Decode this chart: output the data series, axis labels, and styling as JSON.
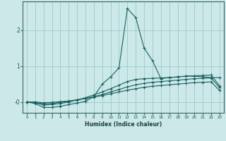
{
  "xlabel": "Humidex (Indice chaleur)",
  "background_color": "#cce8e8",
  "grid_color": "#99cccc",
  "line_color": "#1a6060",
  "x_values": [
    0,
    1,
    2,
    3,
    4,
    5,
    6,
    7,
    8,
    9,
    10,
    11,
    12,
    13,
    14,
    15,
    16,
    17,
    18,
    19,
    20,
    21,
    22,
    23
  ],
  "series": [
    [
      0.0,
      -0.04,
      -0.15,
      -0.15,
      -0.12,
      -0.07,
      -0.03,
      0.02,
      0.15,
      0.5,
      0.7,
      0.95,
      2.6,
      2.35,
      1.5,
      1.15,
      0.65,
      0.68,
      0.7,
      0.72,
      0.72,
      0.7,
      0.68,
      0.68
    ],
    [
      0.0,
      -0.02,
      -0.08,
      -0.07,
      -0.04,
      0.0,
      0.06,
      0.12,
      0.2,
      0.28,
      0.37,
      0.47,
      0.57,
      0.63,
      0.65,
      0.66,
      0.67,
      0.68,
      0.7,
      0.72,
      0.73,
      0.74,
      0.75,
      0.45
    ],
    [
      0.0,
      -0.01,
      -0.05,
      -0.04,
      -0.01,
      0.02,
      0.06,
      0.1,
      0.15,
      0.21,
      0.28,
      0.35,
      0.42,
      0.48,
      0.52,
      0.55,
      0.57,
      0.59,
      0.61,
      0.63,
      0.65,
      0.66,
      0.67,
      0.4
    ],
    [
      0.0,
      0.0,
      -0.02,
      -0.01,
      0.01,
      0.03,
      0.06,
      0.1,
      0.14,
      0.18,
      0.23,
      0.28,
      0.33,
      0.37,
      0.41,
      0.44,
      0.46,
      0.48,
      0.5,
      0.52,
      0.54,
      0.55,
      0.56,
      0.32
    ]
  ],
  "ylim": [
    -0.3,
    2.8
  ],
  "xlim": [
    -0.5,
    23.5
  ],
  "yticks": [
    0,
    1,
    2
  ],
  "ytick_labels": [
    "-0",
    "1",
    "2"
  ],
  "xtick_labels": [
    "0",
    "1",
    "2",
    "3",
    "4",
    "5",
    "6",
    "7",
    "8",
    "9",
    "10",
    "11",
    "12",
    "13",
    "14",
    "15",
    "16",
    "17",
    "18",
    "19",
    "20",
    "21",
    "22",
    "23"
  ]
}
